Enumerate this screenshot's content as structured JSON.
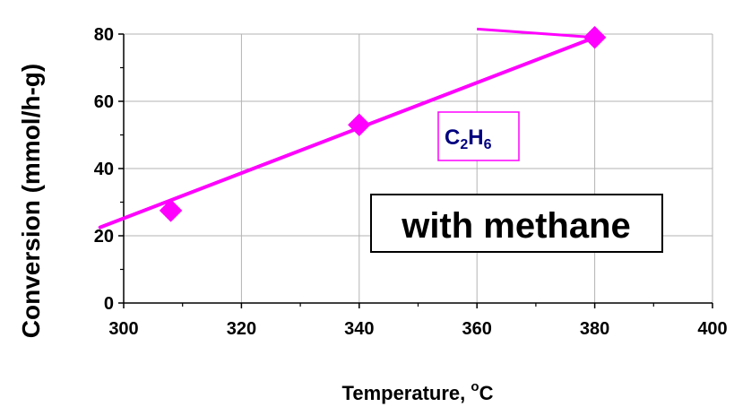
{
  "chart_data": {
    "type": "line",
    "title": "",
    "xlabel": "Temperature, ",
    "xlabel_sup": "o",
    "xlabel_unit": "C",
    "ylabel": "Conversion (mmol/h-g)",
    "xlim": [
      300,
      400
    ],
    "ylim": [
      0,
      80
    ],
    "x_ticks": [
      300,
      320,
      340,
      360,
      380,
      400
    ],
    "y_ticks": [
      0,
      20,
      40,
      60,
      80
    ],
    "grid": true,
    "series": [
      {
        "x": [
          308,
          340,
          380
        ],
        "y": [
          27.5,
          53,
          79
        ],
        "color": "#ff00ff",
        "marker": "diamond"
      }
    ],
    "trend_line": {
      "color": "#ff00ff",
      "points": [
        [
          296,
          22.5
        ],
        [
          380,
          79
        ]
      ]
    },
    "leader_line": {
      "color": "#ff00ff",
      "points": [
        [
          360,
          81.5
        ],
        [
          380,
          79
        ]
      ]
    },
    "annotations": [
      {
        "name": "series-label",
        "base": "C",
        "sub1": "2",
        "mid": "H",
        "sub2": "6",
        "text_color": "#000080",
        "border_color": "#ff00ff"
      },
      {
        "name": "condition-label",
        "text": "with methane",
        "text_color": "#000000",
        "border_color": "#000000"
      }
    ]
  }
}
